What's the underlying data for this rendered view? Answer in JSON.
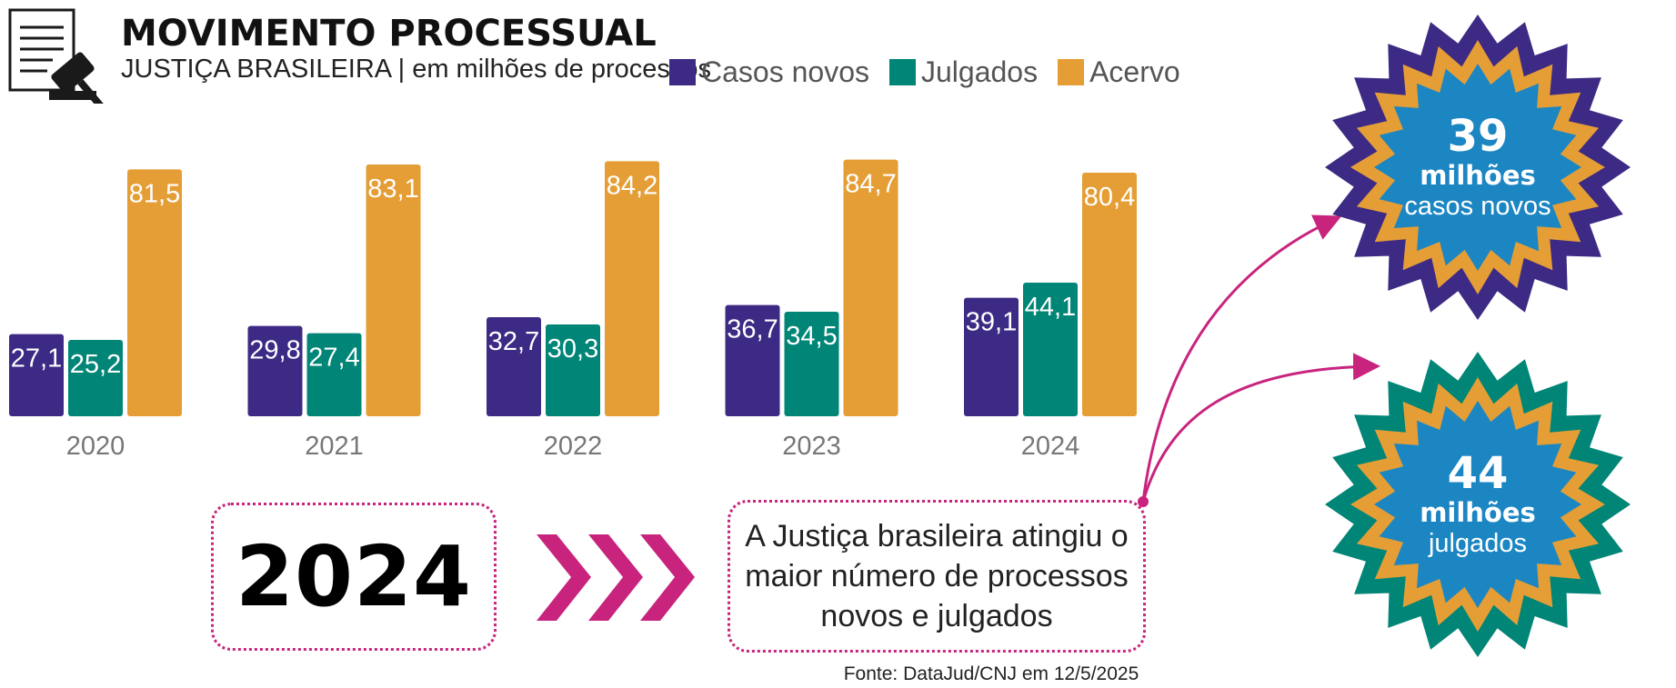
{
  "header": {
    "title": "MOVIMENTO PROCESSUAL",
    "subtitle": "JUSTIÇA BRASILEIRA | em milhões de processos"
  },
  "icons": {
    "header_icon": "document-gavel-icon",
    "chevrons_icon": "triple-chevron-right-icon"
  },
  "colors": {
    "casos_novos": "#3d2a84",
    "julgados": "#008577",
    "acervo": "#e59e35",
    "accent": "#c8247e",
    "badge_center": "#1c86c3"
  },
  "chart_data": {
    "type": "bar",
    "categories": [
      "2020",
      "2021",
      "2022",
      "2023",
      "2024"
    ],
    "series": [
      {
        "name": "Casos novos",
        "values": [
          27.1,
          29.8,
          32.7,
          36.7,
          39.1
        ],
        "labels": [
          "27,1",
          "29,8",
          "32,7",
          "36,7",
          "39,1"
        ],
        "color": "#3d2a84"
      },
      {
        "name": "Julgados",
        "values": [
          25.2,
          27.4,
          30.3,
          34.5,
          44.1
        ],
        "labels": [
          "25,2",
          "27,4",
          "30,3",
          "34,5",
          "44,1"
        ],
        "color": "#008577"
      },
      {
        "name": "Acervo",
        "values": [
          81.5,
          83.1,
          84.2,
          84.7,
          80.4
        ],
        "labels": [
          "81,5",
          "83,1",
          "84,2",
          "84,7",
          "80,4"
        ],
        "color": "#e59e35"
      }
    ],
    "ylim": [
      0,
      90
    ],
    "legend_position": "top",
    "grid": false
  },
  "highlight": {
    "year": "2024",
    "note": "A Justiça brasileira atingiu o maior número de processos novos e julgados"
  },
  "badges": [
    {
      "number": "39",
      "unit": "milhões",
      "label": "casos novos",
      "ring_color": "#3d2a84"
    },
    {
      "number": "44",
      "unit": "milhões",
      "label": "julgados",
      "ring_color": "#008577"
    }
  ],
  "source": "Fonte: DataJud/CNJ em 12/5/2025"
}
